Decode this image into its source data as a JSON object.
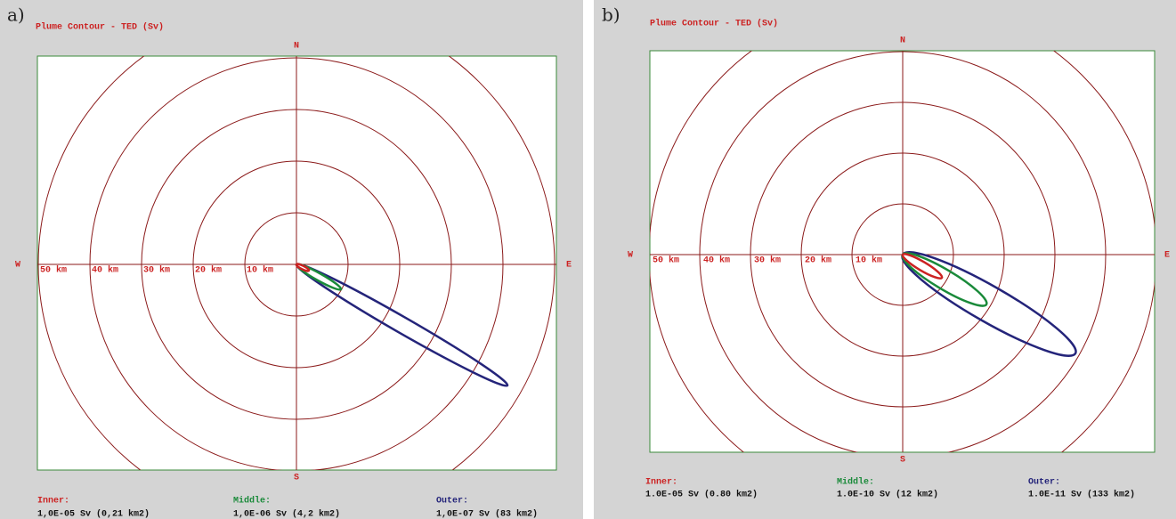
{
  "panels": [
    {
      "label": "a)",
      "title": "Plume Contour - TED (Sv)",
      "compass": {
        "n": "N",
        "s": "S",
        "w": "W",
        "e": "E"
      },
      "rings": [
        "50 km",
        "40 km",
        "30 km",
        "20 km",
        "10 km"
      ],
      "legend": [
        {
          "name": "Inner:",
          "text": "1,0E-05 Sv (0,21 km2)"
        },
        {
          "name": "Middle:",
          "text": "1,0E-06 Sv (4,2 km2)"
        },
        {
          "name": "Outer:",
          "text": "1,0E-07 Sv (83 km2)"
        }
      ]
    },
    {
      "label": "b)",
      "title": "Plume Contour - TED (Sv)",
      "compass": {
        "n": "N",
        "s": "S",
        "w": "W",
        "e": "E"
      },
      "rings": [
        "50 km",
        "40 km",
        "30 km",
        "20 km",
        "10 km"
      ],
      "legend": [
        {
          "name": "Inner:",
          "text": "1.0E-05 Sv (0.80 km2)"
        },
        {
          "name": "Middle:",
          "text": "1.0E-10 Sv (12 km2)"
        },
        {
          "name": "Outer:",
          "text": "1.0E-11 Sv (133 km2)"
        }
      ]
    }
  ]
}
